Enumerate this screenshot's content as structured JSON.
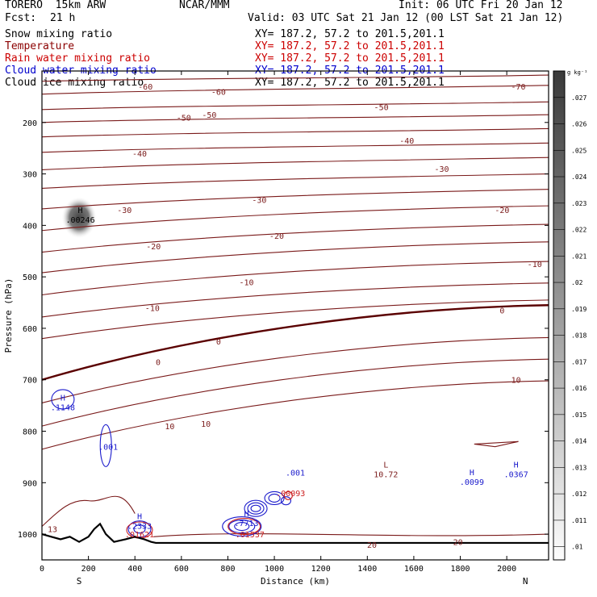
{
  "header": {
    "model": "TORERO  15km ARW",
    "center": "NCAR/MMM",
    "init": "Init: 06 UTC Fri 20 Jan 12",
    "fcst_label": "Fcst:",
    "fcst_value": "21 h",
    "valid": "Valid: 03 UTC Sat 21 Jan 12 (00 LST Sat 21 Jan 12)"
  },
  "fields": [
    {
      "name": "Snow mixing ratio",
      "xy": "XY= 187.2, 57.2 to 201.5,201.1",
      "color": "#000000",
      "xy_color": "#000000"
    },
    {
      "name": "Temperature",
      "xy": "XY= 187.2, 57.2 to 201.5,201.1",
      "color": "#8b0000",
      "xy_color": "#cc0000"
    },
    {
      "name": "Rain water mixing ratio",
      "xy": "XY= 187.2, 57.2 to 201.5,201.1",
      "color": "#cc0000",
      "xy_color": "#cc0000"
    },
    {
      "name": "Cloud water mixing ratio",
      "xy": "XY= 187.2, 57.2 to 201.5,201.1",
      "color": "#0000cc",
      "xy_color": "#0000cc"
    },
    {
      "name": "Cloud ice mixing ratio",
      "xy": "XY= 187.2, 57.2 to 201.5,201.1",
      "color": "#000000",
      "xy_color": "#000000"
    }
  ],
  "colors": {
    "temperature": "#7a1a1a",
    "zero_isotherm": "#5a0000",
    "cloud_water": "#1a1acc",
    "rain": "#cc2020",
    "terrain": "#000000"
  },
  "chart_data": {
    "type": "contour",
    "xlabel": "Distance (km)",
    "ylabel": "Pressure (hPa)",
    "xlim": [
      0,
      2180
    ],
    "ylim": [
      1050,
      100
    ],
    "x_ticks": [
      0,
      200,
      400,
      600,
      800,
      1000,
      1200,
      1400,
      1600,
      1800,
      2000
    ],
    "y_ticks": [
      200,
      300,
      400,
      500,
      600,
      700,
      800,
      900,
      1000
    ],
    "end_labels": {
      "left": "S",
      "right": "N"
    },
    "colorbar": {
      "unit": "g kg⁻¹",
      "ticks": [
        ".027",
        ".026",
        ".025",
        ".024",
        ".023",
        ".022",
        ".021",
        ".02",
        ".019",
        ".018",
        ".017",
        ".016",
        ".015",
        ".014",
        ".013",
        ".012",
        ".011",
        ".01"
      ]
    },
    "temperature_labels": [
      {
        "t": "-60",
        "x": 760,
        "p": 140
      },
      {
        "t": "-70",
        "x": 2050,
        "p": 130
      },
      {
        "t": "-60",
        "x": 445,
        "p": 130
      },
      {
        "t": "-50",
        "x": 610,
        "p": 190
      },
      {
        "t": "-50",
        "x": 720,
        "p": 185
      },
      {
        "t": "-50",
        "x": 1460,
        "p": 170
      },
      {
        "t": "-40",
        "x": 420,
        "p": 260
      },
      {
        "t": "-40",
        "x": 1570,
        "p": 235
      },
      {
        "t": "-30",
        "x": 355,
        "p": 370
      },
      {
        "t": "-30",
        "x": 935,
        "p": 350
      },
      {
        "t": "-30",
        "x": 1720,
        "p": 290
      },
      {
        "t": "-20",
        "x": 480,
        "p": 440
      },
      {
        "t": "-20",
        "x": 1010,
        "p": 420
      },
      {
        "t": "-20",
        "x": 1980,
        "p": 370
      },
      {
        "t": "-10",
        "x": 475,
        "p": 560
      },
      {
        "t": "-10",
        "x": 880,
        "p": 510
      },
      {
        "t": "-10",
        "x": 2120,
        "p": 475
      },
      {
        "t": "0",
        "x": 500,
        "p": 665
      },
      {
        "t": "0",
        "x": 760,
        "p": 625
      },
      {
        "t": "0",
        "x": 1980,
        "p": 565
      },
      {
        "t": "10",
        "x": 550,
        "p": 790
      },
      {
        "t": "10",
        "x": 705,
        "p": 785
      },
      {
        "t": "10",
        "x": 2040,
        "p": 700
      },
      {
        "t": "13",
        "x": 45,
        "p": 990
      },
      {
        "t": "20",
        "x": 1420,
        "p": 1020
      },
      {
        "t": "20",
        "x": 1790,
        "p": 1015
      }
    ],
    "extrema": [
      {
        "kind": "H",
        "value": ".00246",
        "x": 165,
        "p": 385,
        "color": "#000000"
      },
      {
        "kind": "H",
        "value": ".1148",
        "x": 90,
        "p": 750,
        "color": "#1a1acc"
      },
      {
        "kind": "L",
        "value": "10.72",
        "x": 1480,
        "p": 880,
        "color": "#7a1a1a"
      },
      {
        "kind": "H",
        "value": ".0099",
        "x": 1850,
        "p": 895,
        "color": "#1a1acc"
      },
      {
        "kind": "H",
        "value": ".0367",
        "x": 2040,
        "p": 880,
        "color": "#1a1acc"
      },
      {
        "kind": "H",
        "value": ".7713",
        "x": 880,
        "p": 975,
        "color": "#1a1acc"
      },
      {
        "kind": "H",
        "value": ".2333",
        "x": 420,
        "p": 980,
        "color": "#1a1acc"
      }
    ],
    "contour_labels": [
      {
        "text": ".001",
        "x": 285,
        "p": 830,
        "color": "#1a1acc"
      },
      {
        "text": ".001",
        "x": 1090,
        "p": 880,
        "color": "#1a1acc"
      },
      {
        "text": ".00093",
        "x": 1070,
        "p": 920,
        "color": "#cc2020"
      },
      {
        "text": ".01537",
        "x": 895,
        "p": 1000,
        "color": "#cc2020"
      },
      {
        "text": ".01621",
        "x": 420,
        "p": 1000,
        "color": "#cc2020"
      }
    ]
  }
}
